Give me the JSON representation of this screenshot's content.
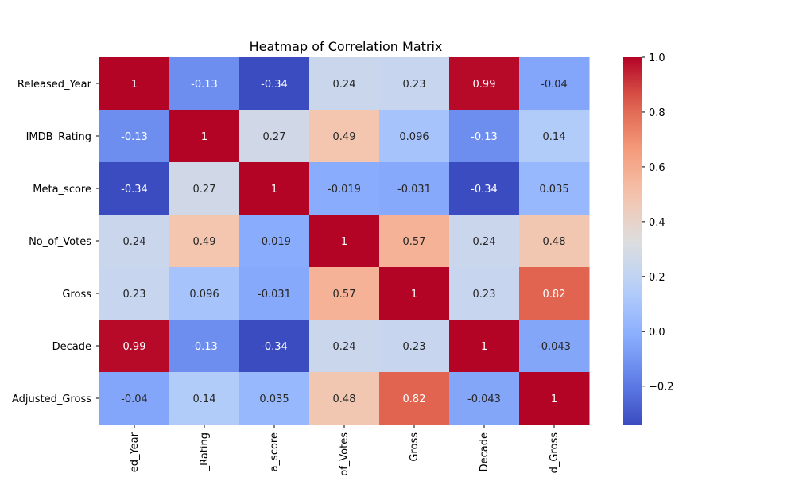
{
  "chart_data": {
    "type": "heatmap",
    "title": "Heatmap of Correlation Matrix",
    "row_labels": [
      "Released_Year",
      "IMDB_Rating",
      "Meta_score",
      "No_of_Votes",
      "Gross",
      "Decade",
      "Adjusted_Gross"
    ],
    "col_labels": [
      "ed_Year",
      "_Rating",
      "a_score",
      "of_Votes",
      "Gross",
      "Decade",
      "d_Gross"
    ],
    "values": [
      [
        1,
        -0.13,
        -0.34,
        0.24,
        0.23,
        0.99,
        -0.04
      ],
      [
        -0.13,
        1,
        0.27,
        0.49,
        0.096,
        -0.13,
        0.14
      ],
      [
        -0.34,
        0.27,
        1,
        -0.019,
        -0.031,
        -0.34,
        0.035
      ],
      [
        0.24,
        0.49,
        -0.019,
        1,
        0.57,
        0.24,
        0.48
      ],
      [
        0.23,
        0.096,
        -0.031,
        0.57,
        1,
        0.23,
        0.82
      ],
      [
        0.99,
        -0.13,
        -0.34,
        0.24,
        0.23,
        1,
        -0.043
      ],
      [
        -0.04,
        0.14,
        0.035,
        0.48,
        0.82,
        -0.043,
        1
      ]
    ],
    "value_labels": [
      [
        "1",
        "-0.13",
        "-0.34",
        "0.24",
        "0.23",
        "0.99",
        "-0.04"
      ],
      [
        "-0.13",
        "1",
        "0.27",
        "0.49",
        "0.096",
        "-0.13",
        "0.14"
      ],
      [
        "-0.34",
        "0.27",
        "1",
        "-0.019",
        "-0.031",
        "-0.34",
        "0.035"
      ],
      [
        "0.24",
        "0.49",
        "-0.019",
        "1",
        "0.57",
        "0.24",
        "0.48"
      ],
      [
        "0.23",
        "0.096",
        "-0.031",
        "0.57",
        "1",
        "0.23",
        "0.82"
      ],
      [
        "0.99",
        "-0.13",
        "-0.34",
        "0.24",
        "0.23",
        "1",
        "-0.043"
      ],
      [
        "-0.04",
        "0.14",
        "0.035",
        "0.48",
        "0.82",
        "-0.043",
        "1"
      ]
    ],
    "colormap": "coolwarm",
    "color_range": [
      -0.34,
      1.0
    ],
    "colorbar_ticks": [
      1.0,
      0.8,
      0.6,
      0.4,
      0.2,
      0.0,
      -0.2
    ],
    "colorbar_tick_labels": [
      "1.0",
      "0.8",
      "0.6",
      "0.4",
      "0.2",
      "0.0",
      "−0.2"
    ]
  }
}
